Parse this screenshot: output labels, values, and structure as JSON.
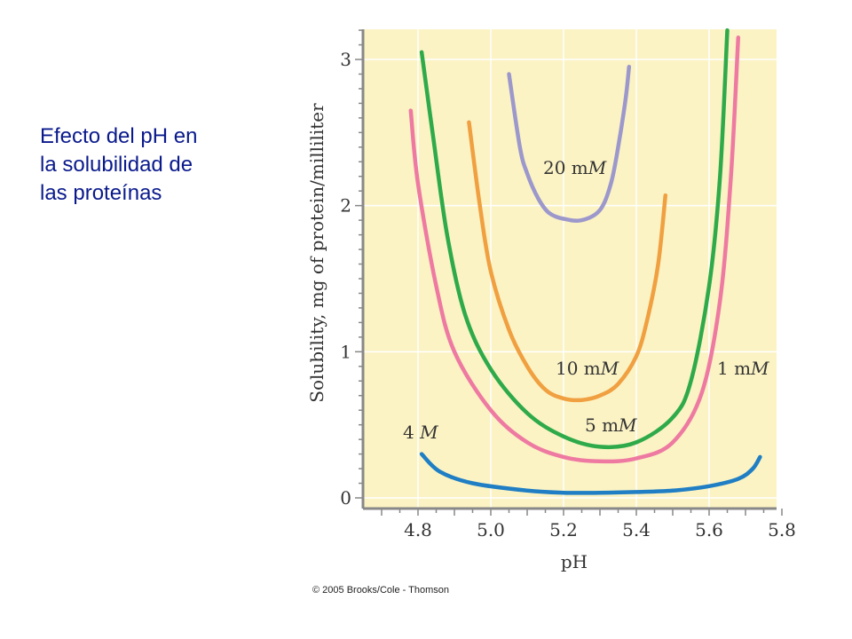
{
  "side_title": "Efecto del pH en\nla solubilidad de\nlas proteínas",
  "copyright": "© 2005 Brooks/Cole - Thomson",
  "chart_data": {
    "type": "line",
    "title": "",
    "xlabel": "pH",
    "ylabel": "Solubility, mg of protein/milliliter",
    "xlim": [
      4.65,
      5.8
    ],
    "ylim": [
      -0.05,
      3.2
    ],
    "xticks": [
      "4.8",
      "5.0",
      "5.2",
      "5.4",
      "5.6",
      "5.8"
    ],
    "yticks": [
      "0",
      "1",
      "2",
      "3"
    ],
    "background_color": "#fbf3c4",
    "grid": true,
    "series": [
      {
        "name": "20 mM",
        "color": "#9c98cc",
        "x": [
          5.05,
          5.08,
          5.1,
          5.13,
          5.16,
          5.2,
          5.25,
          5.3,
          5.33,
          5.35,
          5.37,
          5.38
        ],
        "y": [
          2.9,
          2.4,
          2.22,
          2.05,
          1.95,
          1.91,
          1.9,
          1.97,
          2.15,
          2.4,
          2.72,
          2.95
        ]
      },
      {
        "name": "10 mM",
        "color": "#f0a040",
        "x": [
          4.94,
          4.97,
          5.0,
          5.05,
          5.1,
          5.15,
          5.2,
          5.25,
          5.3,
          5.35,
          5.4,
          5.43,
          5.46,
          5.48
        ],
        "y": [
          2.57,
          2.0,
          1.55,
          1.15,
          0.9,
          0.74,
          0.68,
          0.67,
          0.7,
          0.78,
          0.97,
          1.22,
          1.6,
          2.07
        ]
      },
      {
        "name": "5 mM",
        "color": "#2faa4a",
        "x": [
          4.81,
          4.84,
          4.88,
          4.93,
          5.0,
          5.1,
          5.2,
          5.3,
          5.4,
          5.5,
          5.55,
          5.6,
          5.63,
          5.65
        ],
        "y": [
          3.05,
          2.5,
          1.8,
          1.25,
          0.88,
          0.58,
          0.42,
          0.35,
          0.38,
          0.55,
          0.8,
          1.45,
          2.2,
          3.2
        ]
      },
      {
        "name": "1 mM",
        "color": "#ee7aa2",
        "x": [
          4.78,
          4.8,
          4.85,
          4.9,
          5.0,
          5.1,
          5.2,
          5.3,
          5.4,
          5.5,
          5.58,
          5.63,
          5.66,
          5.68
        ],
        "y": [
          2.65,
          2.15,
          1.45,
          1.0,
          0.6,
          0.38,
          0.28,
          0.25,
          0.27,
          0.38,
          0.72,
          1.35,
          2.2,
          3.15
        ]
      },
      {
        "name": "4 M",
        "color": "#1f7ec4",
        "x": [
          4.81,
          4.86,
          4.95,
          5.1,
          5.2,
          5.3,
          5.4,
          5.5,
          5.6,
          5.68,
          5.72,
          5.74
        ],
        "y": [
          0.3,
          0.18,
          0.1,
          0.05,
          0.035,
          0.035,
          0.04,
          0.05,
          0.08,
          0.13,
          0.2,
          0.28
        ]
      }
    ]
  }
}
